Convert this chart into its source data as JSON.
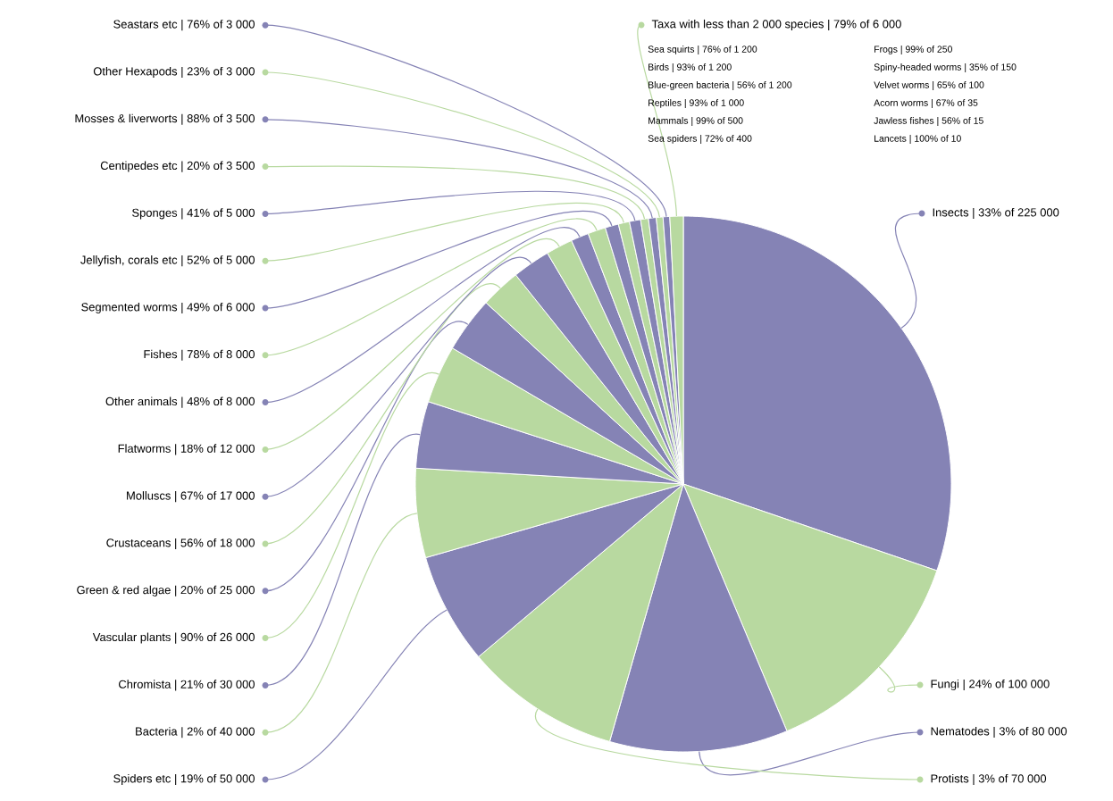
{
  "chart_data": {
    "type": "pie",
    "legend": "right",
    "categories": [
      "Insects",
      "Fungi",
      "Nematodes",
      "Protists",
      "Spiders etc",
      "Bacteria",
      "Chromista",
      "Vascular plants",
      "Green & red algae",
      "Crustaceans",
      "Molluscs",
      "Flatworms",
      "Other animals",
      "Fishes",
      "Segmented worms",
      "Jellyfish, corals etc",
      "Sponges",
      "Centipedes etc",
      "Mosses & liverworts",
      "Other Hexapods",
      "Seastars etc",
      "Taxa with less than 2 000 species"
    ],
    "values": [
      225000,
      100000,
      80000,
      70000,
      50000,
      40000,
      30000,
      26000,
      25000,
      18000,
      17000,
      12000,
      8000,
      8000,
      6000,
      5000,
      5000,
      3500,
      3500,
      3000,
      3000,
      6000
    ],
    "value_labels": [
      "| 33% of 225 000",
      "| 24% of 100 000",
      "| 3% of 80 000",
      "| 3% of 70 000",
      "| 19% of 50 000",
      "| 2% of 40 000",
      "| 21% of 30 000",
      "| 90% of 26 000",
      "| 20% of 25 000",
      "| 56% of 18 000",
      "| 67% of 17 000",
      "| 18% of 12 000",
      "| 48% of 8 000",
      "| 78% of 8 000",
      "| 49% of 6 000",
      "| 52% of 5 000",
      "| 41% of 5 000",
      "| 20% of 3 500",
      "| 88% of 3 500",
      "| 23% of 3 000",
      "| 76% of 3 000",
      "| 79% of 6 000"
    ],
    "colors": [
      "#8583b5",
      "#b8d9a0",
      "#8583b5",
      "#b8d9a0",
      "#8583b5",
      "#b8d9a0",
      "#8583b5",
      "#b8d9a0",
      "#8583b5",
      "#b8d9a0",
      "#8583b5",
      "#b8d9a0",
      "#8583b5",
      "#b8d9a0",
      "#8583b5",
      "#b8d9a0",
      "#8583b5",
      "#b8d9a0",
      "#8583b5",
      "#b8d9a0",
      "#8583b5",
      "#b8d9a0"
    ],
    "annotations": [
      "Sea squirts | 76% of 1 200",
      "Birds | 93% of 1 200",
      "Blue-green bacteria | 56% of 1 200",
      "Reptiles | 93% of 1 000",
      "Mammals | 99% of 500",
      "Sea spiders | 72% of 400",
      "Frogs | 99% of 250",
      "Spiny-headed worms | 35% of 150",
      "Velvet worms | 65% of 100",
      "Acorn worms | 67% of 35",
      "Jawless fishes | 56% of 15",
      "Lancets | 100% of 10"
    ]
  }
}
